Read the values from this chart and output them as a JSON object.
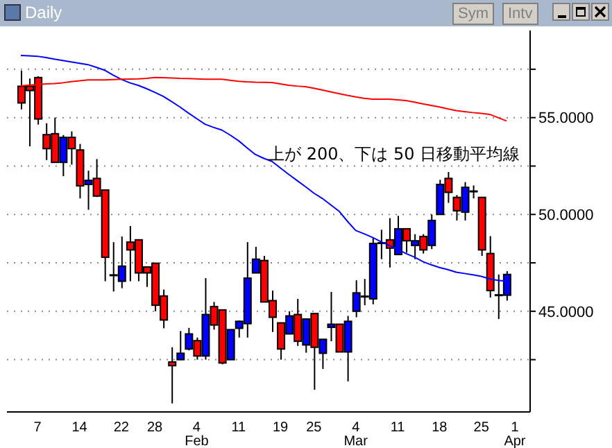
{
  "chart_data": {
    "type": "candlestick",
    "title": "Daily",
    "annotations": [
      "上が 200、下は 50 日移動平均線",
      "Sym",
      "Intv"
    ],
    "categories": [
      null,
      null,
      "7",
      null,
      null,
      null,
      null,
      "14",
      null,
      null,
      null,
      null,
      "22",
      null,
      null,
      null,
      "28",
      null,
      null,
      null,
      null,
      "4\nFeb",
      null,
      null,
      null,
      null,
      "11",
      null,
      null,
      null,
      null,
      "19",
      null,
      null,
      null,
      "25",
      null,
      null,
      null,
      null,
      "4\nMar",
      null,
      null,
      null,
      null,
      "11",
      null,
      null,
      null,
      null,
      "18",
      null,
      null,
      null,
      null,
      "25",
      null,
      null,
      null,
      "1\nApr"
    ],
    "ohlc": [
      [
        56.62,
        57.43,
        55.43,
        55.76
      ],
      [
        56.62,
        57.02,
        53.52,
        56.4
      ],
      [
        57.07,
        57.14,
        54.64,
        54.93
      ],
      [
        54.12,
        54.71,
        52.81,
        53.4
      ],
      [
        54.17,
        55.0,
        52.69,
        52.69
      ],
      [
        52.69,
        54.1,
        51.98,
        53.98
      ],
      [
        53.98,
        54.29,
        52.57,
        53.4
      ],
      [
        53.33,
        53.64,
        50.83,
        51.48
      ],
      [
        51.55,
        52.26,
        50.24,
        51.76
      ],
      [
        51.86,
        52.86,
        50.9,
        50.95
      ],
      [
        51.26,
        51.26,
        46.55,
        47.79
      ],
      [
        46.86,
        48.57,
        46.02,
        46.86
      ],
      [
        46.55,
        48.86,
        46.19,
        47.33
      ],
      [
        48.57,
        49.4,
        46.55,
        48.17
      ],
      [
        48.69,
        48.69,
        46.55,
        46.98
      ],
      [
        47.29,
        47.29,
        46.26,
        46.98
      ],
      [
        47.48,
        47.48,
        45.0,
        45.31
      ],
      [
        45.79,
        46.12,
        44.12,
        44.55
      ],
      [
        42.38,
        43.14,
        40.24,
        42.19
      ],
      [
        42.5,
        43.98,
        42.5,
        42.83
      ],
      [
        43.05,
        44.14,
        42.98,
        43.83
      ],
      [
        43.48,
        43.64,
        42.5,
        42.69
      ],
      [
        42.69,
        46.71,
        42.5,
        44.83
      ],
      [
        45.24,
        45.48,
        44.05,
        44.29
      ],
      [
        45.07,
        45.07,
        42.26,
        42.33
      ],
      [
        42.5,
        44.05,
        42.5,
        44.05
      ],
      [
        44.12,
        44.52,
        43.64,
        44.48
      ],
      [
        44.36,
        48.57,
        43.64,
        46.71
      ],
      [
        46.98,
        48.33,
        46.98,
        47.69
      ],
      [
        47.62,
        47.86,
        45.48,
        45.48
      ],
      [
        45.55,
        46.07,
        43.93,
        44.69
      ],
      [
        44.4,
        44.4,
        42.5,
        43.05
      ],
      [
        43.83,
        45.0,
        43.81,
        44.76
      ],
      [
        44.83,
        45.64,
        43.21,
        43.45
      ],
      [
        43.26,
        44.6,
        42.86,
        44.6
      ],
      [
        44.88,
        44.88,
        40.95,
        43.14
      ],
      [
        42.83,
        43.55,
        42.02,
        43.55
      ],
      [
        44.17,
        46.0,
        43.45,
        44.33
      ],
      [
        44.33,
        44.33,
        42.9,
        42.9
      ],
      [
        42.9,
        44.76,
        41.38,
        44.48
      ],
      [
        45.0,
        46.6,
        44.69,
        45.95
      ],
      [
        45.76,
        46.67,
        45.31,
        45.76
      ],
      [
        45.64,
        48.81,
        45.36,
        48.5
      ],
      [
        48.52,
        49.21,
        47.69,
        48.52
      ],
      [
        48.69,
        49.81,
        47.26,
        48.26
      ],
      [
        47.93,
        49.93,
        47.93,
        49.26
      ],
      [
        49.26,
        49.26,
        48.02,
        48.64
      ],
      [
        48.4,
        48.98,
        47.69,
        48.64
      ],
      [
        48.86,
        48.98,
        47.98,
        48.17
      ],
      [
        48.4,
        50.0,
        48.21,
        49.69
      ],
      [
        50.0,
        51.79,
        50.0,
        51.55
      ],
      [
        51.86,
        52.19,
        50.6,
        51.14
      ],
      [
        50.88,
        51.0,
        49.69,
        50.19
      ],
      [
        50.12,
        51.67,
        49.69,
        51.4
      ],
      [
        51.19,
        51.5,
        50.83,
        51.19
      ],
      [
        50.88,
        50.88,
        47.86,
        48.17
      ],
      [
        47.98,
        48.88,
        45.71,
        46.07
      ],
      [
        45.83,
        46.9,
        44.6,
        45.83
      ],
      [
        45.83,
        47.07,
        45.55,
        46.9
      ],
      null
    ],
    "colors": [
      "#ff0000",
      "#ff0000",
      "#ff0000",
      "#ff0000",
      "#ff0000",
      "#0000ff",
      "#ff0000",
      "#ff0000",
      "#0000ff",
      "#ff0000",
      "#ff0000",
      "#000000",
      "#0000ff",
      "#ff0000",
      "#ff0000",
      "#ff0000",
      "#ff0000",
      "#ff0000",
      "#ff0000",
      "#0000ff",
      "#0000ff",
      "#ff0000",
      "#0000ff",
      "#ff0000",
      "#ff0000",
      "#0000ff",
      "#0000ff",
      "#0000ff",
      "#0000ff",
      "#ff0000",
      "#ff0000",
      "#ff0000",
      "#0000ff",
      "#ff0000",
      "#0000ff",
      "#ff0000",
      "#0000ff",
      "#0000ff",
      "#ff0000",
      "#0000ff",
      "#0000ff",
      "#000000",
      "#0000ff",
      "#000000",
      "#ff0000",
      "#0000ff",
      "#ff0000",
      "#0000ff",
      "#ff0000",
      "#0000ff",
      "#0000ff",
      "#ff0000",
      "#ff0000",
      "#0000ff",
      "#000000",
      "#ff0000",
      "#ff0000",
      "#000000",
      "#0000ff",
      null
    ],
    "series": [
      {
        "type": "line",
        "color": "#0000ff",
        "values": [
          58.21,
          58.19,
          58.17,
          58.1,
          58.02,
          57.95,
          57.88,
          57.81,
          57.74,
          57.6,
          57.45,
          57.2,
          56.98,
          56.8,
          56.67,
          56.5,
          56.31,
          56.1,
          55.83,
          55.55,
          55.24,
          54.95,
          54.66,
          54.5,
          54.36,
          54.1,
          53.81,
          53.45,
          53.1,
          52.9,
          52.74,
          52.4,
          52.07,
          51.75,
          51.43,
          51.1,
          50.83,
          50.5,
          50.17,
          49.65,
          49.17,
          49.0,
          48.81,
          48.6,
          48.4,
          48.2,
          47.98,
          47.8,
          47.57,
          47.4,
          47.26,
          47.15,
          47.02,
          46.95,
          46.88,
          46.8,
          46.67,
          46.6,
          46.55,
          null
        ]
      },
      {
        "type": "line",
        "color": "#ff0000",
        "values": [
          56.64,
          56.68,
          56.71,
          56.74,
          56.76,
          56.8,
          56.86,
          56.9,
          56.95,
          56.95,
          56.95,
          56.97,
          56.98,
          56.99,
          57.0,
          57.03,
          57.07,
          57.06,
          57.05,
          57.03,
          57.02,
          57.0,
          56.98,
          56.98,
          56.98,
          56.93,
          56.88,
          56.85,
          56.83,
          56.82,
          56.81,
          56.74,
          56.67,
          56.63,
          56.6,
          56.52,
          56.43,
          56.33,
          56.24,
          56.15,
          56.07,
          56.0,
          55.95,
          55.95,
          55.95,
          55.92,
          55.88,
          55.8,
          55.71,
          55.63,
          55.55,
          55.45,
          55.36,
          55.31,
          55.26,
          55.22,
          55.17,
          55.0,
          54.83,
          null
        ]
      }
    ],
    "ylim": [
      39.8,
      59.5
    ],
    "yticks": [
      {
        "value": 42.5,
        "label": null
      },
      {
        "value": 45,
        "label": "45.0000"
      },
      {
        "value": 47.5,
        "label": null
      },
      {
        "value": 50,
        "label": "50.0000"
      },
      {
        "value": 52.5,
        "label": null
      },
      {
        "value": 55,
        "label": "55.0000"
      },
      {
        "value": 57.5,
        "label": null
      }
    ],
    "grid": "y"
  }
}
